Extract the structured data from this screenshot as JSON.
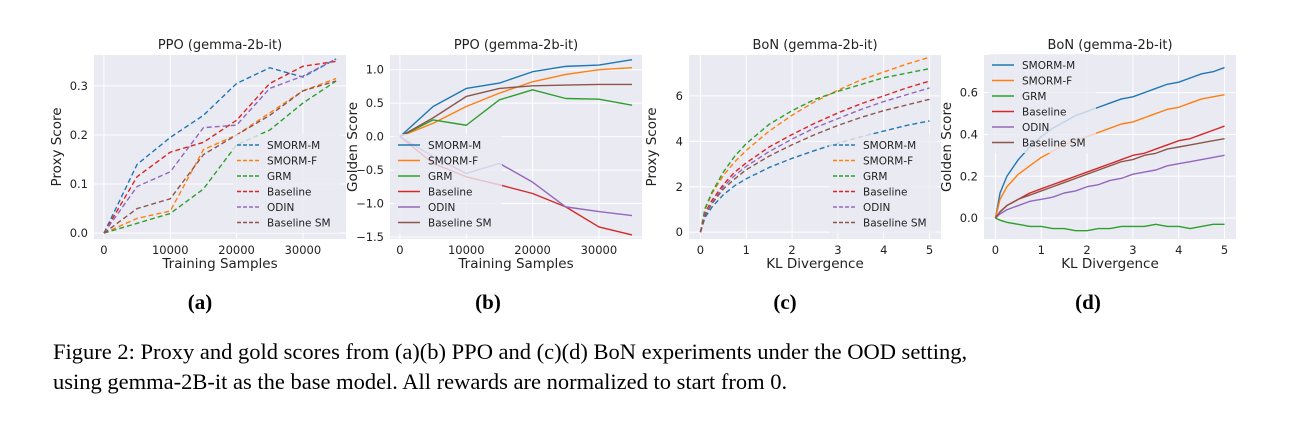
{
  "figure": {
    "panel_labels": [
      "(a)",
      "(b)",
      "(c)",
      "(d)"
    ],
    "caption_line1": "Figure 2: Proxy and gold scores from (a)(b) PPO and (c)(d) BoN experiments under the OOD setting,",
    "caption_line2": "using gemma-2B-it as the base model. All rewards are normalized to start from 0."
  },
  "colors": {
    "SMORM-M": "#1f77b4",
    "SMORM-F": "#ff7f0e",
    "GRM": "#2ca02c",
    "Baseline": "#d62728",
    "ODIN": "#9467bd",
    "Baseline SM": "#8c564b",
    "plot_background": "#eaeaf2",
    "grid": "#ffffff"
  },
  "chart_data": [
    {
      "type": "line",
      "panel": "(a)",
      "title": "PPO (gemma-2b-it)",
      "xlabel": "Training Samples",
      "ylabel": "Proxy Score",
      "xlim": [
        -1500,
        36500
      ],
      "ylim": [
        -0.012,
        0.363
      ],
      "xticks": [
        0,
        10000,
        20000,
        30000
      ],
      "xtick_labels": [
        "0",
        "10000",
        "20000",
        "30000"
      ],
      "yticks": [
        0,
        0.1,
        0.2,
        0.3
      ],
      "ytick_labels": [
        "0.0",
        "0.1",
        "0.2",
        "0.3"
      ],
      "grid": true,
      "line_style": "dashed",
      "legend": "lower right",
      "x": [
        0,
        5000,
        10000,
        15000,
        20000,
        25000,
        30000,
        35000
      ],
      "series": [
        {
          "name": "SMORM-M",
          "values": [
            0,
            0.14,
            0.195,
            0.24,
            0.305,
            0.337,
            0.318,
            0.355
          ]
        },
        {
          "name": "SMORM-F",
          "values": [
            0,
            0.03,
            0.045,
            0.17,
            0.2,
            0.245,
            0.29,
            0.315
          ]
        },
        {
          "name": "GRM",
          "values": [
            0,
            0.02,
            0.04,
            0.09,
            0.18,
            0.21,
            0.265,
            0.31
          ]
        },
        {
          "name": "Baseline",
          "values": [
            0,
            0.115,
            0.165,
            0.185,
            0.23,
            0.305,
            0.34,
            0.35
          ]
        },
        {
          "name": "ODIN",
          "values": [
            0,
            0.095,
            0.125,
            0.215,
            0.22,
            0.295,
            0.32,
            0.355
          ]
        },
        {
          "name": "Baseline SM",
          "values": [
            0,
            0.05,
            0.07,
            0.16,
            0.2,
            0.24,
            0.29,
            0.31
          ]
        }
      ]
    },
    {
      "type": "line",
      "panel": "(b)",
      "title": "PPO (gemma-2b-it)",
      "xlabel": "Training Samples",
      "ylabel": "Golden Score",
      "xlim": [
        -1500,
        36500
      ],
      "ylim": [
        -1.53,
        1.22
      ],
      "xticks": [
        0,
        10000,
        20000,
        30000
      ],
      "xtick_labels": [
        "0",
        "10000",
        "20000",
        "30000"
      ],
      "yticks": [
        -1.5,
        -1.0,
        -0.5,
        0.0,
        0.5,
        1.0
      ],
      "ytick_labels": [
        "−1.5",
        "−1.0",
        "−0.5",
        "0.0",
        "0.5",
        "1.0"
      ],
      "grid": true,
      "line_style": "solid",
      "legend": "lower left",
      "x": [
        0,
        5000,
        10000,
        15000,
        20000,
        25000,
        30000,
        35000
      ],
      "series": [
        {
          "name": "SMORM-M",
          "values": [
            0,
            0.45,
            0.72,
            0.8,
            0.97,
            1.05,
            1.07,
            1.15
          ]
        },
        {
          "name": "SMORM-F",
          "values": [
            0,
            0.2,
            0.45,
            0.65,
            0.82,
            0.93,
            1.0,
            1.03
          ]
        },
        {
          "name": "GRM",
          "values": [
            0,
            0.25,
            0.17,
            0.55,
            0.7,
            0.57,
            0.56,
            0.47
          ]
        },
        {
          "name": "Baseline",
          "values": [
            0,
            -0.4,
            -0.6,
            -0.72,
            -0.85,
            -1.05,
            -1.35,
            -1.47
          ]
        },
        {
          "name": "ODIN",
          "values": [
            0,
            -0.3,
            -0.55,
            -0.4,
            -0.68,
            -1.05,
            -1.12,
            -1.18
          ]
        },
        {
          "name": "Baseline SM",
          "values": [
            0,
            0.28,
            0.6,
            0.72,
            0.76,
            0.77,
            0.78,
            0.78
          ]
        }
      ]
    },
    {
      "type": "line",
      "panel": "(c)",
      "title": "BoN (gemma-2b-it)",
      "xlabel": "KL Divergence",
      "ylabel": "Proxy Score",
      "xlim": [
        -0.25,
        5.25
      ],
      "ylim": [
        -0.3,
        7.8
      ],
      "xticks": [
        0,
        1,
        2,
        3,
        4,
        5
      ],
      "xtick_labels": [
        "0",
        "1",
        "2",
        "3",
        "4",
        "5"
      ],
      "yticks": [
        0,
        2,
        4,
        6
      ],
      "ytick_labels": [
        "0",
        "2",
        "4",
        "6"
      ],
      "grid": true,
      "line_style": "dashed",
      "legend": "lower right",
      "x": [
        0,
        0.1,
        0.25,
        0.5,
        0.75,
        1,
        1.5,
        2,
        2.5,
        3,
        3.5,
        4,
        4.5,
        5
      ],
      "series": [
        {
          "name": "SMORM-M",
          "values": [
            0,
            0.65,
            1.1,
            1.65,
            2.05,
            2.35,
            2.85,
            3.25,
            3.6,
            3.92,
            4.2,
            4.45,
            4.7,
            4.9
          ]
        },
        {
          "name": "SMORM-F",
          "values": [
            0,
            1.0,
            1.7,
            2.5,
            3.1,
            3.6,
            4.45,
            5.15,
            5.75,
            6.25,
            6.7,
            7.05,
            7.4,
            7.7
          ]
        },
        {
          "name": "GRM",
          "values": [
            0,
            1.05,
            1.75,
            2.65,
            3.35,
            3.9,
            4.75,
            5.35,
            5.85,
            6.2,
            6.5,
            6.8,
            7.0,
            7.2
          ]
        },
        {
          "name": "Baseline",
          "values": [
            0,
            0.85,
            1.4,
            2.1,
            2.65,
            3.05,
            3.75,
            4.3,
            4.8,
            5.25,
            5.65,
            6.0,
            6.35,
            6.65
          ]
        },
        {
          "name": "ODIN",
          "values": [
            0,
            0.8,
            1.3,
            2.0,
            2.5,
            2.9,
            3.55,
            4.1,
            4.6,
            5.0,
            5.4,
            5.75,
            6.05,
            6.35
          ]
        },
        {
          "name": "Baseline SM",
          "values": [
            0,
            0.75,
            1.25,
            1.9,
            2.35,
            2.75,
            3.35,
            3.85,
            4.3,
            4.7,
            5.05,
            5.35,
            5.6,
            5.85
          ]
        }
      ]
    },
    {
      "type": "line",
      "panel": "(d)",
      "title": "BoN (gemma-2b-it)",
      "xlabel": "KL Divergence",
      "ylabel": "Golden Score",
      "xlim": [
        -0.25,
        5.25
      ],
      "ylim": [
        -0.1,
        0.78
      ],
      "xticks": [
        0,
        1,
        2,
        3,
        4,
        5
      ],
      "xtick_labels": [
        "0",
        "1",
        "2",
        "3",
        "4",
        "5"
      ],
      "yticks": [
        0,
        0.2,
        0.4,
        0.6
      ],
      "ytick_labels": [
        "0.0",
        "0.2",
        "0.4",
        "0.6"
      ],
      "grid": true,
      "line_style": "solid",
      "legend": "upper left",
      "x": [
        0,
        0.1,
        0.25,
        0.5,
        0.75,
        1,
        1.25,
        1.5,
        1.75,
        2,
        2.25,
        2.5,
        2.75,
        3,
        3.25,
        3.5,
        3.75,
        4,
        4.25,
        4.5,
        4.75,
        5
      ],
      "series": [
        {
          "name": "SMORM-M",
          "values": [
            0,
            0.12,
            0.2,
            0.28,
            0.34,
            0.39,
            0.43,
            0.46,
            0.49,
            0.51,
            0.53,
            0.55,
            0.57,
            0.58,
            0.6,
            0.62,
            0.64,
            0.65,
            0.67,
            0.69,
            0.7,
            0.72
          ]
        },
        {
          "name": "SMORM-F",
          "values": [
            0,
            0.09,
            0.15,
            0.21,
            0.25,
            0.29,
            0.32,
            0.35,
            0.37,
            0.39,
            0.41,
            0.43,
            0.45,
            0.46,
            0.48,
            0.5,
            0.52,
            0.53,
            0.55,
            0.57,
            0.58,
            0.59
          ]
        },
        {
          "name": "GRM",
          "values": [
            0,
            -0.01,
            -0.02,
            -0.03,
            -0.04,
            -0.04,
            -0.05,
            -0.05,
            -0.06,
            -0.06,
            -0.05,
            -0.05,
            -0.04,
            -0.04,
            -0.04,
            -0.03,
            -0.04,
            -0.04,
            -0.05,
            -0.04,
            -0.03,
            -0.03
          ]
        },
        {
          "name": "Baseline",
          "values": [
            0,
            0.03,
            0.06,
            0.09,
            0.12,
            0.14,
            0.16,
            0.18,
            0.2,
            0.22,
            0.24,
            0.26,
            0.28,
            0.3,
            0.31,
            0.33,
            0.35,
            0.37,
            0.38,
            0.4,
            0.42,
            0.44
          ]
        },
        {
          "name": "ODIN",
          "values": [
            0,
            0.02,
            0.04,
            0.06,
            0.08,
            0.09,
            0.1,
            0.12,
            0.13,
            0.15,
            0.16,
            0.18,
            0.19,
            0.21,
            0.22,
            0.23,
            0.25,
            0.26,
            0.27,
            0.28,
            0.29,
            0.3
          ]
        },
        {
          "name": "Baseline SM",
          "values": [
            0,
            0.03,
            0.06,
            0.09,
            0.11,
            0.13,
            0.15,
            0.17,
            0.19,
            0.21,
            0.23,
            0.25,
            0.27,
            0.28,
            0.3,
            0.31,
            0.33,
            0.34,
            0.35,
            0.36,
            0.37,
            0.38
          ]
        }
      ]
    }
  ]
}
